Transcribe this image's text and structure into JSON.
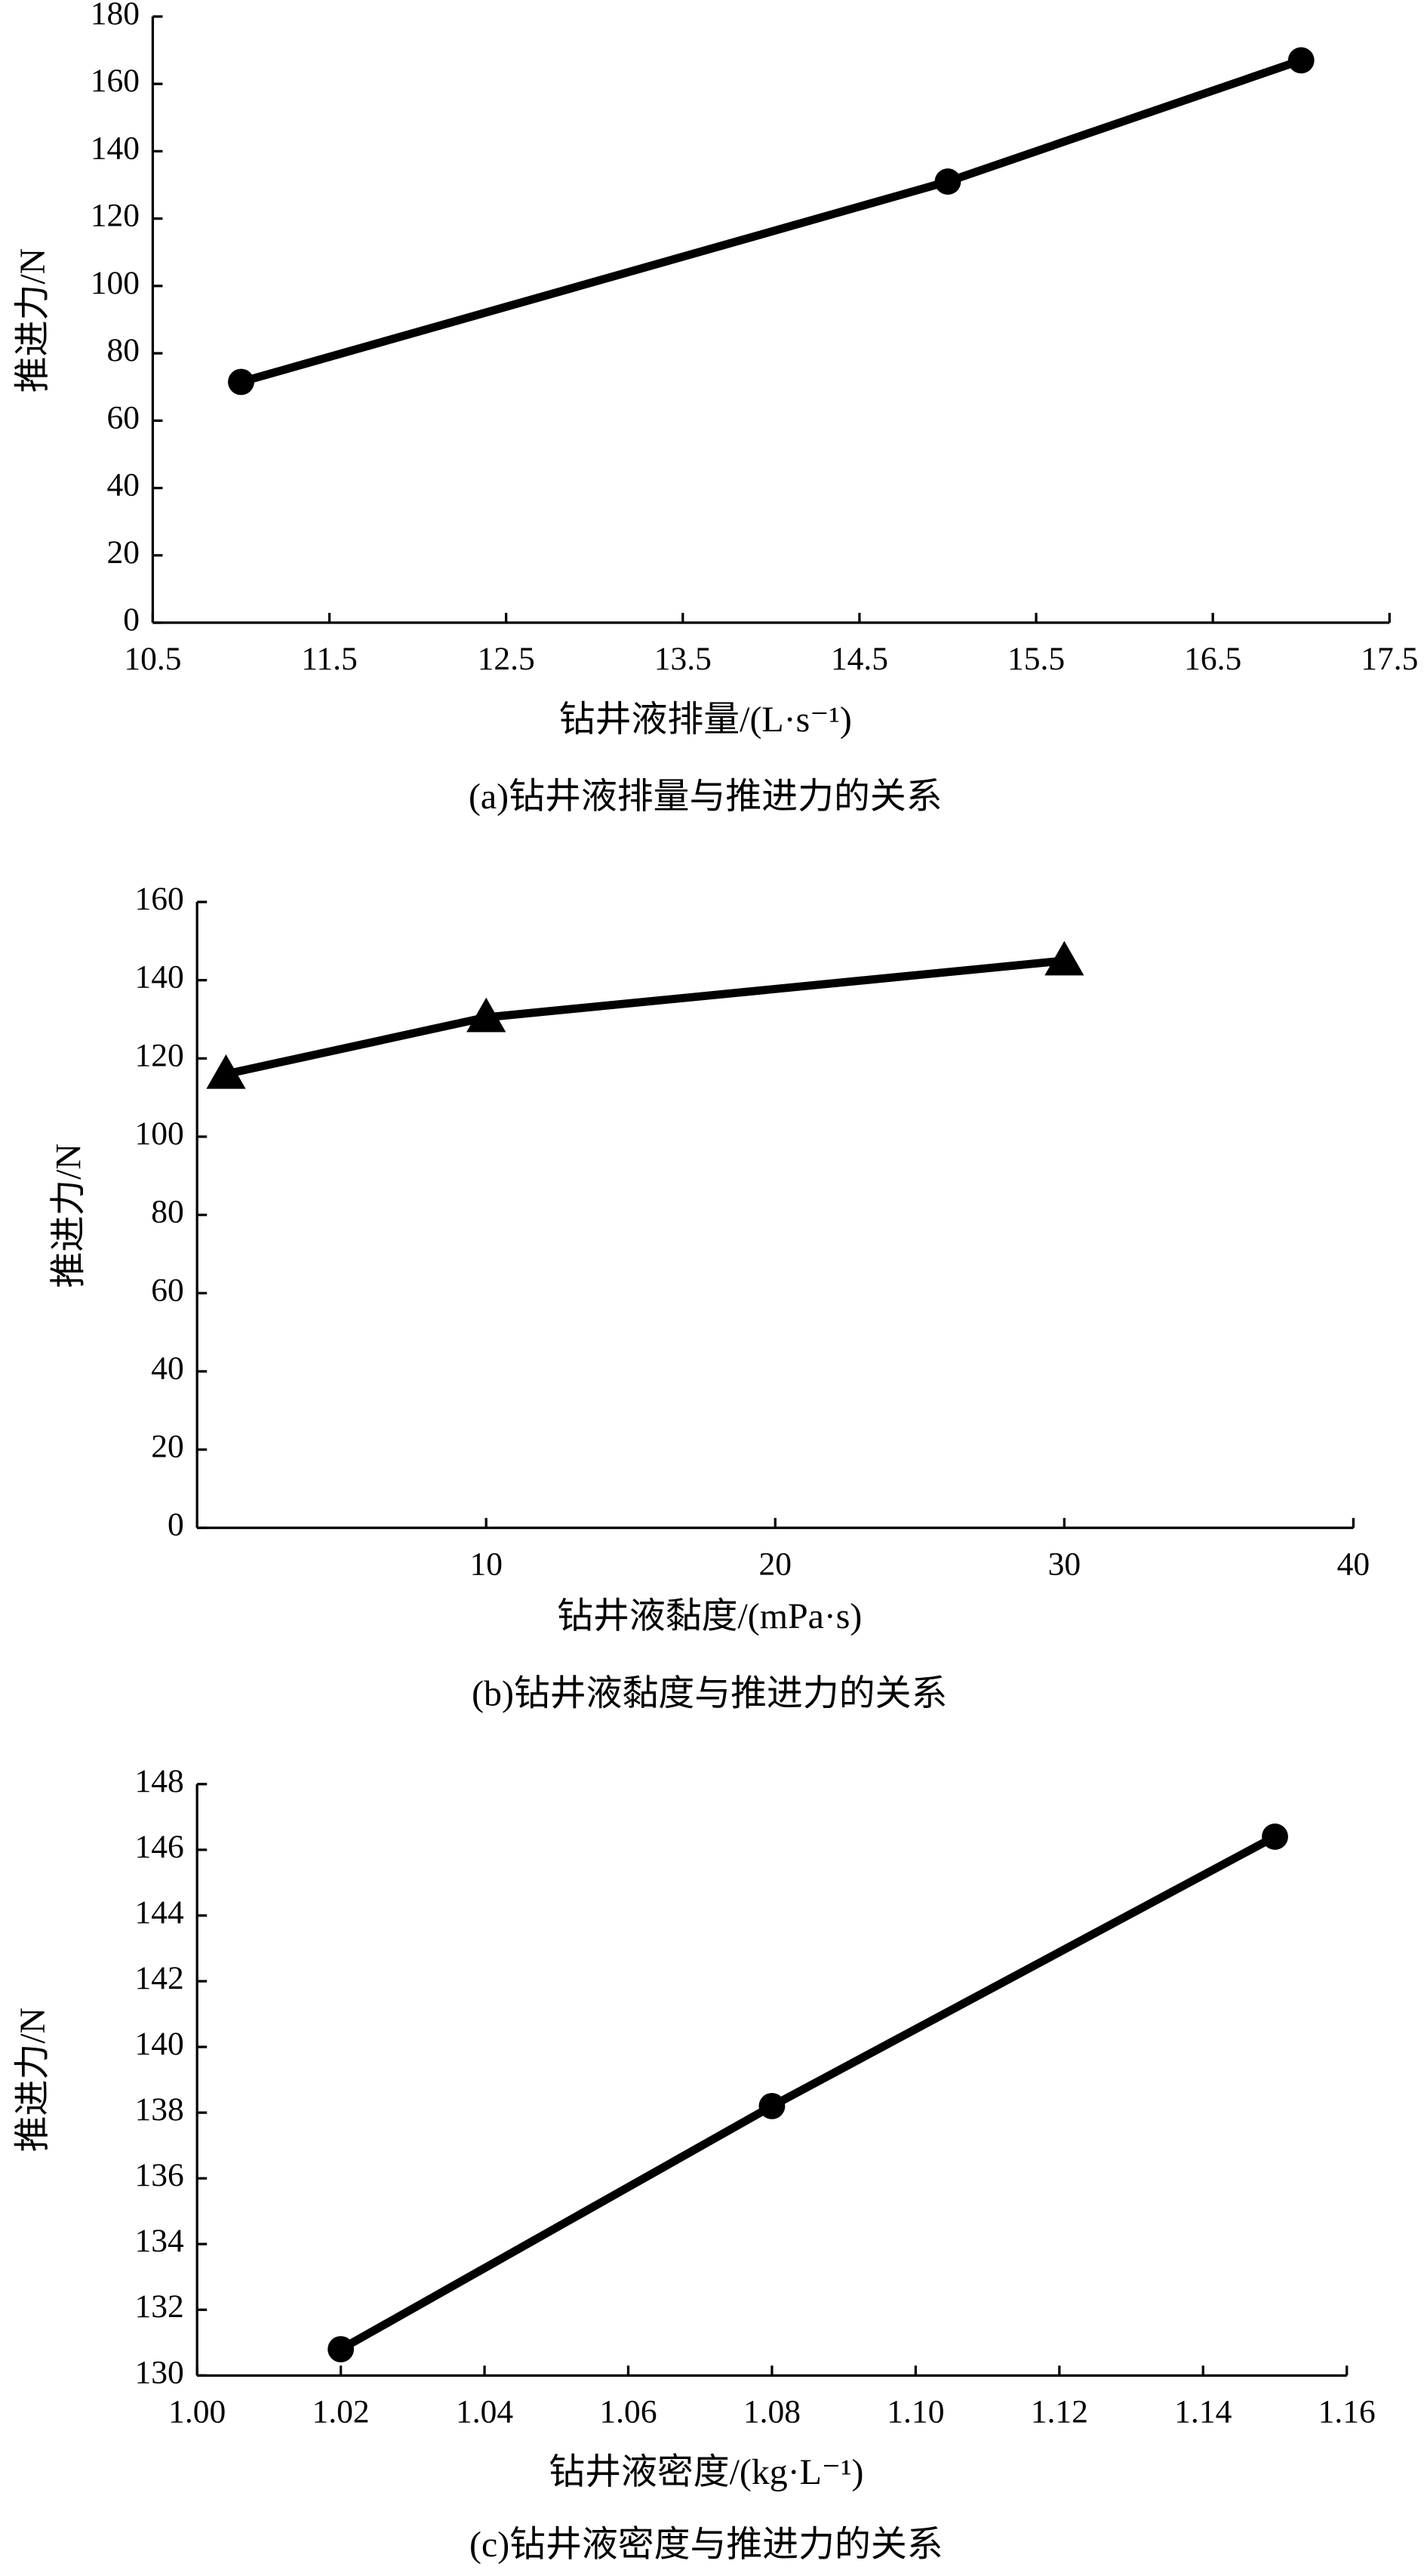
{
  "chart_data": [
    {
      "type": "line",
      "title": "(a)钻井液排量与推进力的关系",
      "xlabel": "钻井液排量/(L·s⁻¹)",
      "ylabel": "推进力/N",
      "x": [
        11,
        15,
        17
      ],
      "values": [
        71.5,
        131,
        167
      ],
      "color": "#000000",
      "marker": "circle",
      "xlim": [
        10.5,
        17.5
      ],
      "xticks": [
        10.5,
        11.5,
        12.5,
        13.5,
        14.5,
        15.5,
        16.5,
        17.5
      ],
      "ylim": [
        0,
        180
      ],
      "yticks": [
        0,
        20,
        40,
        60,
        80,
        100,
        120,
        140,
        160,
        180
      ]
    },
    {
      "type": "line",
      "title": "(b)钻井液黏度与推进力的关系",
      "xlabel": "钻井液黏度/(mPa·s)",
      "ylabel": "推进力/N",
      "x": [
        1,
        10,
        30
      ],
      "values": [
        116,
        130.5,
        145
      ],
      "color": "#000000",
      "marker": "triangle",
      "xlim": [
        0,
        40
      ],
      "xticks": [
        10,
        20,
        30,
        40
      ],
      "ylim": [
        0,
        160
      ],
      "yticks": [
        0,
        20,
        40,
        60,
        80,
        100,
        120,
        140,
        160
      ]
    },
    {
      "type": "line",
      "title": "(c)钻井液密度与推进力的关系",
      "xlabel": "钻井液密度/(kg·L⁻¹)",
      "ylabel": "推进力/N",
      "x": [
        1.02,
        1.08,
        1.15
      ],
      "values": [
        130.8,
        138.2,
        146.4
      ],
      "color": "#000000",
      "marker": "circle",
      "xlim": [
        1.0,
        1.16
      ],
      "xticks": [
        {
          "value": 1.0,
          "label": "1.00"
        },
        1.02,
        1.04,
        1.06,
        1.08,
        {
          "value": 1.1,
          "label": "1.10"
        },
        1.12,
        1.14,
        1.16
      ],
      "ylim": [
        130,
        148
      ],
      "yticks": [
        130,
        132,
        134,
        136,
        138,
        140,
        142,
        144,
        146,
        148
      ]
    }
  ]
}
